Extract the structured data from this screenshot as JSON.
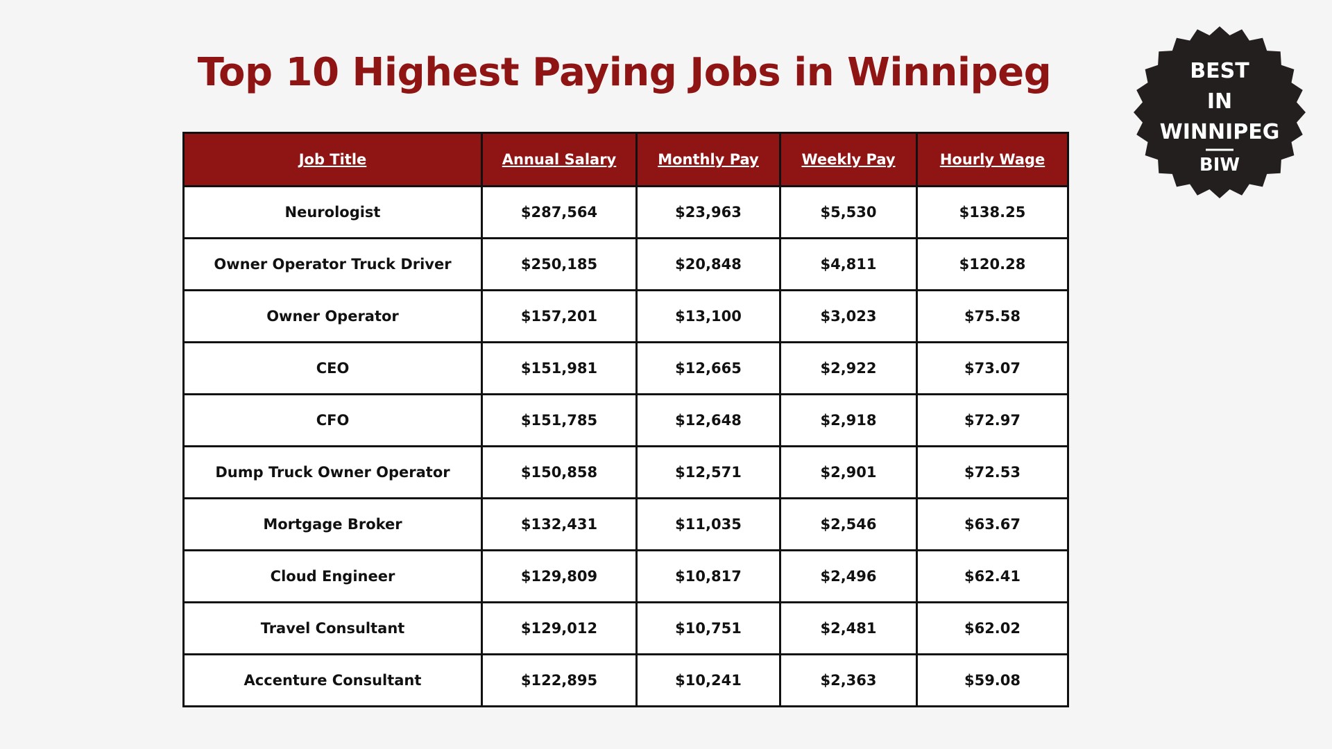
{
  "title": "Top 10 Highest Paying Jobs in Winnipeg",
  "badge": {
    "lines": [
      "BEST",
      "IN",
      "WINNIPEG"
    ],
    "mark": "BIW"
  },
  "table": {
    "headers": [
      "Job Title",
      "Annual Salary",
      "Monthly Pay",
      "Weekly Pay",
      "Hourly Wage"
    ],
    "rows": [
      [
        "Neurologist",
        "$287,564",
        "$23,963",
        "$5,530",
        "$138.25"
      ],
      [
        "Owner Operator Truck Driver",
        "$250,185",
        "$20,848",
        "$4,811",
        "$120.28"
      ],
      [
        "Owner Operator",
        "$157,201",
        "$13,100",
        "$3,023",
        "$75.58"
      ],
      [
        "CEO",
        "$151,981",
        "$12,665",
        "$2,922",
        "$73.07"
      ],
      [
        "CFO",
        "$151,785",
        "$12,648",
        "$2,918",
        "$72.97"
      ],
      [
        "Dump Truck Owner Operator",
        "$150,858",
        "$12,571",
        "$2,901",
        "$72.53"
      ],
      [
        "Mortgage Broker",
        "$132,431",
        "$11,035",
        "$2,546",
        "$63.67"
      ],
      [
        "Cloud Engineer",
        "$129,809",
        "$10,817",
        "$2,496",
        "$62.41"
      ],
      [
        "Travel Consultant",
        "$129,012",
        "$10,751",
        "$2,481",
        "$62.02"
      ],
      [
        "Accenture Consultant",
        "$122,895",
        "$10,241",
        "$2,363",
        "$59.08"
      ]
    ]
  }
}
